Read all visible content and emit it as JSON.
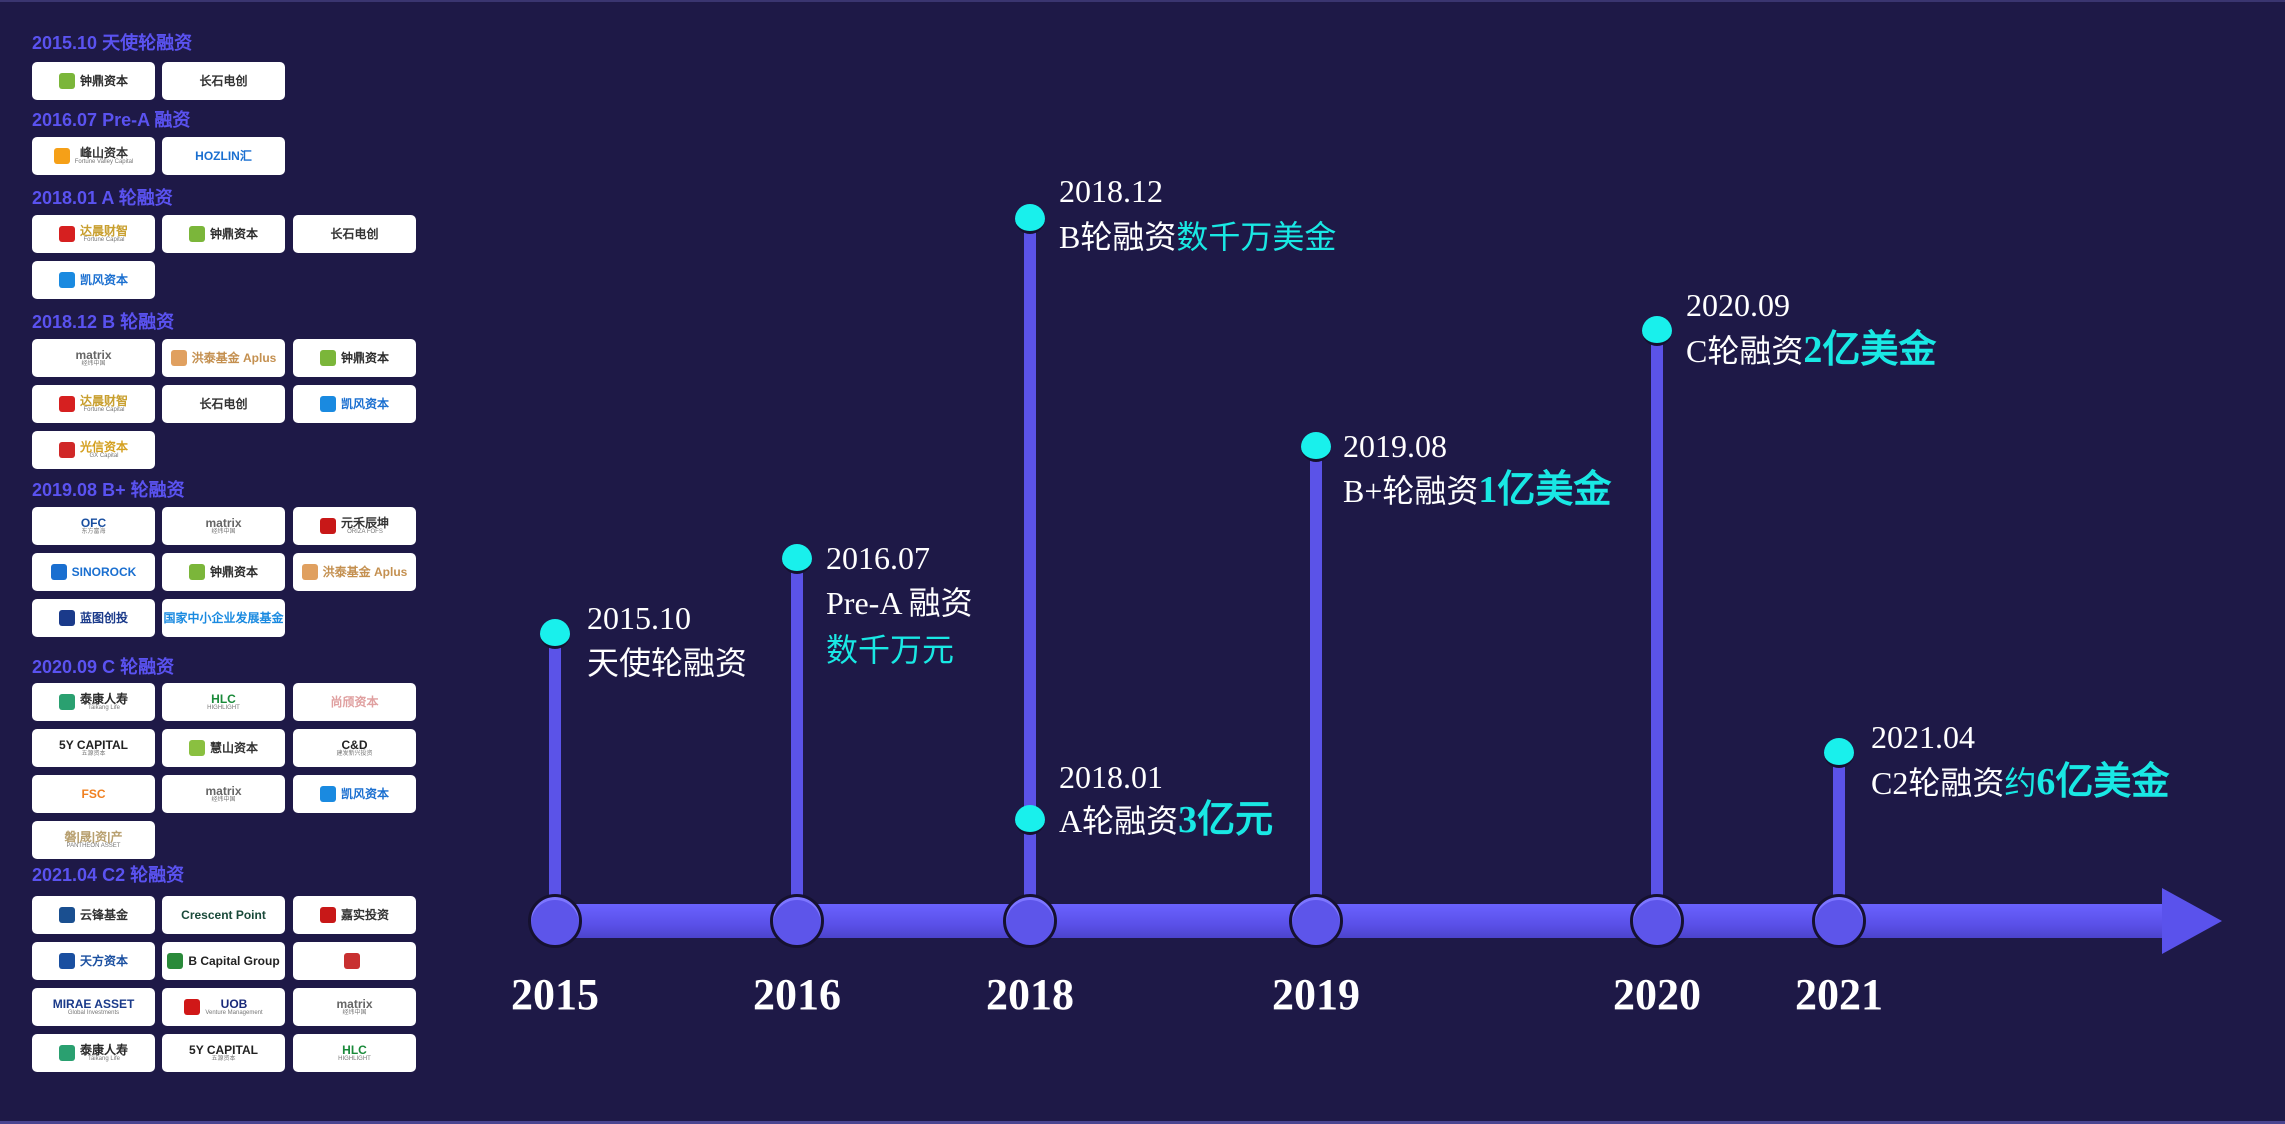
{
  "colors": {
    "background": "#1e1947",
    "section_title": "#5a52f0",
    "axis": "#5a52ec",
    "dot": "#19f0ec",
    "highlight": "#19e8e4"
  },
  "sidebar": {
    "sections": [
      {
        "title": "2015.10 天使轮融资",
        "logos": [
          {
            "name": "钟鼎资本",
            "sub": "",
            "color": "#2b2b2b",
            "mark": "#7bb63a"
          },
          {
            "name": "长石电创",
            "sub": "",
            "color": "#333333",
            "mark": ""
          }
        ]
      },
      {
        "title": "2016.07 Pre-A 融资",
        "logos": [
          {
            "name": "峰山资本",
            "sub": "Fortune Valley Capital",
            "color": "#333333",
            "mark": "#f5a018"
          },
          {
            "name": "HOZLIN汇",
            "sub": "",
            "color": "#1a6fd0",
            "mark": ""
          }
        ]
      },
      {
        "title": "2018.01 A 轮融资",
        "logos": [
          {
            "name": "达晨财智",
            "sub": "Fortune Capital",
            "color": "#c9a030",
            "mark": "#d62020"
          },
          {
            "name": "钟鼎资本",
            "sub": "",
            "color": "#2b2b2b",
            "mark": "#7bb63a"
          },
          {
            "name": "长石电创",
            "sub": "",
            "color": "#333333",
            "mark": ""
          },
          {
            "name": "凯风资本",
            "sub": "",
            "color": "#1a6fd0",
            "mark": "#1a8ae0"
          }
        ]
      },
      {
        "title": "2018.12 B 轮融资",
        "logos": [
          {
            "name": "matrix",
            "sub": "经纬中国",
            "color": "#666666",
            "mark": ""
          },
          {
            "name": "洪泰基金 Aplus",
            "sub": "",
            "color": "#c49050",
            "mark": "#e0a060"
          },
          {
            "name": "钟鼎资本",
            "sub": "",
            "color": "#2b2b2b",
            "mark": "#7bb63a"
          },
          {
            "name": "达晨财智",
            "sub": "Fortune Capital",
            "color": "#c9a030",
            "mark": "#d62020"
          },
          {
            "name": "长石电创",
            "sub": "",
            "color": "#333333",
            "mark": ""
          },
          {
            "name": "凯风资本",
            "sub": "",
            "color": "#1a6fd0",
            "mark": "#1a8ae0"
          },
          {
            "name": "光信资本",
            "sub": "GX Capital",
            "color": "#d4a020",
            "mark": "#d02828"
          }
        ]
      },
      {
        "title": "2019.08 B+ 轮融资",
        "logos": [
          {
            "name": "OFC",
            "sub": "东方富海",
            "color": "#1a4fa0",
            "mark": ""
          },
          {
            "name": "matrix",
            "sub": "经纬中国",
            "color": "#666666",
            "mark": ""
          },
          {
            "name": "元禾辰坤",
            "sub": "ORIZA FOFS",
            "color": "#333333",
            "mark": "#c81818"
          },
          {
            "name": "SINOROCK",
            "sub": "",
            "color": "#1a6fd0",
            "mark": "#1a6fd0"
          },
          {
            "name": "钟鼎资本",
            "sub": "",
            "color": "#2b2b2b",
            "mark": "#7bb63a"
          },
          {
            "name": "洪泰基金 Aplus",
            "sub": "",
            "color": "#c49050",
            "mark": "#e0a060"
          },
          {
            "name": "蓝图创投",
            "sub": "",
            "color": "#1a3a8a",
            "mark": "#1a3a8a"
          },
          {
            "name": "国家中小企业发展基金",
            "sub": "",
            "color": "#1a8ae0",
            "mark": ""
          }
        ]
      },
      {
        "title": "2020.09 C 轮融资",
        "logos": [
          {
            "name": "泰康人寿",
            "sub": "Taikang Life",
            "color": "#2a2a2a",
            "mark": "#2aa070"
          },
          {
            "name": "HLC",
            "sub": "HIGHLIGHT",
            "color": "#1a8a3a",
            "mark": ""
          },
          {
            "name": "尚颀资本",
            "sub": "",
            "color": "#e0a0a0",
            "mark": ""
          },
          {
            "name": "5Y CAPITAL",
            "sub": "五源资本",
            "color": "#222222",
            "mark": ""
          },
          {
            "name": "慧山资本",
            "sub": "",
            "color": "#333333",
            "mark": "#8ac040"
          },
          {
            "name": "C&D",
            "sub": "建发新兴投资",
            "color": "#222222",
            "mark": ""
          },
          {
            "name": "FSC",
            "sub": "",
            "color": "#f08020",
            "mark": ""
          },
          {
            "name": "matrix",
            "sub": "经纬中国",
            "color": "#666666",
            "mark": ""
          },
          {
            "name": "凯风资本",
            "sub": "",
            "color": "#1a6fd0",
            "mark": "#1a8ae0"
          },
          {
            "name": "磐|晟|资|产",
            "sub": "PANTHEON ASSET",
            "color": "#b8a070",
            "mark": ""
          }
        ]
      },
      {
        "title": "2021.04 C2 轮融资",
        "logos": [
          {
            "name": "云锋基金",
            "sub": "",
            "color": "#333333",
            "mark": "#1a4f90"
          },
          {
            "name": "Crescent Point",
            "sub": "",
            "color": "#1a4a3a",
            "mark": ""
          },
          {
            "name": "嘉实投资",
            "sub": "",
            "color": "#333333",
            "mark": "#c81818"
          },
          {
            "name": "天方资本",
            "sub": "",
            "color": "#1a4fa0",
            "mark": "#1a4fa0"
          },
          {
            "name": "B Capital Group",
            "sub": "",
            "color": "#222222",
            "mark": "#2a8a3a"
          },
          {
            "name": "",
            "sub": "",
            "color": "#2a8a3a",
            "mark": "#c83030"
          },
          {
            "name": "MIRAE ASSET",
            "sub": "Global Investments",
            "color": "#1a3a8a",
            "mark": ""
          },
          {
            "name": "UOB",
            "sub": "Venture Management",
            "color": "#1a2a7a",
            "mark": "#d01818"
          },
          {
            "name": "matrix",
            "sub": "经纬中国",
            "color": "#666666",
            "mark": ""
          },
          {
            "name": "泰康人寿",
            "sub": "Taikang Life",
            "color": "#2a2a2a",
            "mark": "#2aa070"
          },
          {
            "name": "5Y CAPITAL",
            "sub": "五源资本",
            "color": "#222222",
            "mark": ""
          },
          {
            "name": "HLC",
            "sub": "HIGHLIGHT",
            "color": "#1a8a3a",
            "mark": ""
          }
        ]
      }
    ]
  },
  "timeline": {
    "years": [
      "2015",
      "2016",
      "2018",
      "2019",
      "2020",
      "2021"
    ],
    "events": [
      {
        "year": "2015",
        "date": "2015.10",
        "lines": [
          [
            {
              "t": "天使轮融资",
              "hl": false
            }
          ]
        ]
      },
      {
        "year": "2016",
        "date": "2016.07",
        "lines": [
          [
            {
              "t": "Pre-A 融资",
              "hl": false
            }
          ],
          [
            {
              "t": "数千万元",
              "hl": true,
              "big": false
            }
          ]
        ]
      },
      {
        "year": "2018",
        "date": "2018.12",
        "lines": [
          [
            {
              "t": "B轮融资",
              "hl": false
            },
            {
              "t": "数千万美金",
              "hl": true,
              "big": false
            }
          ]
        ]
      },
      {
        "year": "2018",
        "date": "2018.01",
        "lines": [
          [
            {
              "t": "A轮融资",
              "hl": false
            },
            {
              "t": "3亿元",
              "hl": true,
              "big": true
            }
          ]
        ]
      },
      {
        "year": "2019",
        "date": "2019.08",
        "lines": [
          [
            {
              "t": "B+轮融资",
              "hl": false
            },
            {
              "t": "1亿美金",
              "hl": true,
              "big": true
            }
          ]
        ]
      },
      {
        "year": "2020",
        "date": "2020.09",
        "lines": [
          [
            {
              "t": "C轮融资",
              "hl": false
            },
            {
              "t": "2亿美金",
              "hl": true,
              "big": true
            }
          ]
        ]
      },
      {
        "year": "2021",
        "date": "2021.04",
        "lines": [
          [
            {
              "t": "C2轮融资",
              "hl": false
            },
            {
              "t": "约",
              "hl": true,
              "big": false
            },
            {
              "t": "6亿美金",
              "hl": true,
              "big": true
            }
          ]
        ]
      }
    ]
  }
}
